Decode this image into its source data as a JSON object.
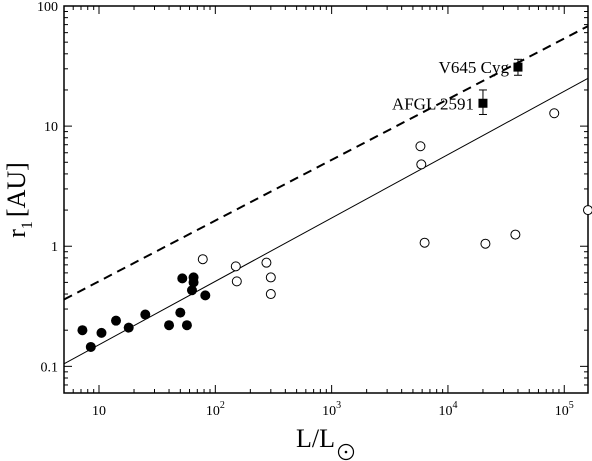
{
  "chart_data": {
    "type": "scatter",
    "title": "",
    "xlabel": "L/L",
    "xlabel_symbol": "sun-symbol",
    "ylabel": "r",
    "ylabel_subscript": "1",
    "ylabel_unit": "[AU]",
    "xscale": "log",
    "yscale": "log",
    "xlim": [
      5,
      160000
    ],
    "ylim": [
      0.06,
      100
    ],
    "grid": false,
    "x_major_ticks": [
      {
        "value": 10,
        "base": "10",
        "exp": ""
      },
      {
        "value": 100,
        "base": "10",
        "exp": "2"
      },
      {
        "value": 1000,
        "base": "10",
        "exp": "3"
      },
      {
        "value": 10000,
        "base": "10",
        "exp": "4"
      },
      {
        "value": 100000,
        "base": "10",
        "exp": "5"
      }
    ],
    "y_major_ticks": [
      {
        "value": 0.1,
        "label": "0.1"
      },
      {
        "value": 1,
        "label": "1"
      },
      {
        "value": 10,
        "label": "10"
      },
      {
        "value": 100,
        "label": "100"
      }
    ],
    "series": [
      {
        "marker": "filled-circle",
        "x": [
          7.2,
          8.5,
          10.5,
          14,
          18,
          25,
          40,
          50,
          52,
          57,
          63,
          65,
          65,
          82
        ],
        "y": [
          0.2,
          0.145,
          0.19,
          0.24,
          0.21,
          0.27,
          0.22,
          0.28,
          0.54,
          0.22,
          0.43,
          0.5,
          0.55,
          0.39
        ]
      },
      {
        "marker": "open-circle",
        "x": [
          78,
          150,
          153,
          275,
          300,
          300,
          5800,
          5900,
          6300,
          21000,
          38000,
          82000,
          160000
        ],
        "y": [
          0.78,
          0.68,
          0.51,
          0.73,
          0.55,
          0.4,
          6.8,
          4.8,
          1.07,
          1.05,
          1.25,
          12.8,
          2.0
        ]
      },
      {
        "marker": "filled-square",
        "x": [
          20000,
          40000
        ],
        "y": [
          15.5,
          31
        ],
        "yerr_low": [
          12.5,
          26.5
        ],
        "yerr_high": [
          20,
          36
        ],
        "labels": [
          "AFGL 2591",
          "V645 Cyg"
        ]
      }
    ],
    "lines": [
      {
        "style": "solid",
        "x": [
          5,
          160000
        ],
        "y": [
          0.105,
          25
        ]
      },
      {
        "style": "dashed",
        "x": [
          5,
          160000
        ],
        "y": [
          0.36,
          68
        ]
      }
    ]
  }
}
